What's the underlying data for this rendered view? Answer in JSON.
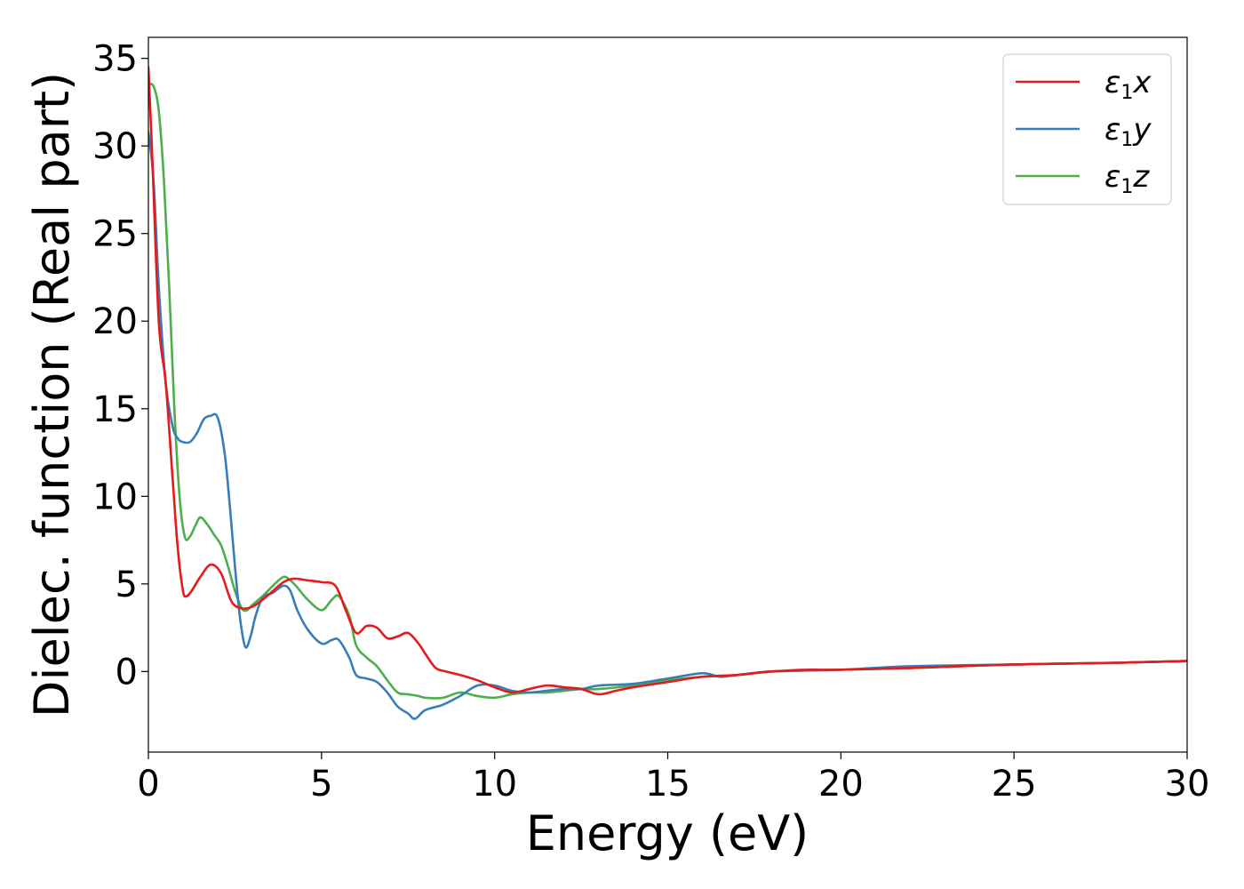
{
  "chart_data": {
    "type": "line",
    "xlabel": "Energy (eV)",
    "ylabel": "Dielec. function (Real part)",
    "xlim": [
      0,
      30
    ],
    "ylim": [
      -4.6,
      36.2
    ],
    "xticks": [
      0,
      5,
      10,
      15,
      20,
      25,
      30
    ],
    "yticks": [
      0,
      5,
      10,
      15,
      20,
      25,
      30,
      35
    ],
    "grid": false,
    "legend_position": "top-right",
    "series": [
      {
        "name": "ε1x",
        "legend": {
          "symbol": "ε",
          "sub": "1",
          "suffix": "x"
        },
        "color": "#e41a1c",
        "x": [
          0.0,
          0.1,
          0.3,
          0.5,
          0.7,
          0.85,
          1.0,
          1.1,
          1.25,
          1.5,
          1.8,
          2.1,
          2.4,
          2.7,
          3.0,
          3.3,
          3.6,
          3.9,
          4.2,
          4.6,
          5.0,
          5.4,
          5.7,
          6.0,
          6.3,
          6.6,
          6.9,
          7.2,
          7.5,
          7.8,
          8.0,
          8.3,
          8.6,
          9.0,
          9.5,
          10.0,
          10.5,
          11.0,
          11.5,
          12.0,
          12.5,
          13.0,
          13.5,
          14.0,
          15.0,
          16.0,
          17.0,
          18.0,
          19.0,
          20.0,
          22.0,
          25.0,
          28.0,
          30.0
        ],
        "y": [
          34.5,
          30.0,
          20.0,
          16.5,
          11.0,
          7.0,
          4.6,
          4.3,
          4.6,
          5.4,
          6.1,
          5.6,
          4.0,
          3.6,
          3.7,
          4.1,
          4.6,
          5.1,
          5.3,
          5.2,
          5.1,
          4.9,
          3.5,
          2.2,
          2.6,
          2.5,
          1.9,
          2.0,
          2.2,
          1.6,
          1.0,
          0.2,
          0.0,
          -0.2,
          -0.5,
          -0.9,
          -1.2,
          -1.0,
          -0.8,
          -0.9,
          -1.0,
          -1.3,
          -1.1,
          -0.9,
          -0.6,
          -0.3,
          -0.2,
          0.0,
          0.1,
          0.1,
          0.2,
          0.4,
          0.5,
          0.6
        ]
      },
      {
        "name": "ε1y",
        "legend": {
          "symbol": "ε",
          "sub": "1",
          "suffix": "y"
        },
        "color": "#377eb8",
        "x": [
          0.0,
          0.15,
          0.3,
          0.5,
          0.7,
          0.85,
          1.0,
          1.2,
          1.4,
          1.6,
          1.8,
          2.0,
          2.2,
          2.35,
          2.5,
          2.65,
          2.8,
          2.95,
          3.1,
          3.3,
          3.6,
          3.9,
          4.1,
          4.3,
          4.6,
          5.0,
          5.3,
          5.5,
          5.8,
          6.0,
          6.3,
          6.6,
          6.9,
          7.2,
          7.5,
          7.7,
          8.0,
          8.5,
          9.0,
          9.5,
          10.0,
          10.5,
          11.0,
          11.5,
          12.0,
          12.5,
          13.0,
          14.0,
          15.0,
          16.0,
          16.5,
          17.0,
          18.0,
          20.0,
          22.0,
          25.0,
          28.0,
          30.0
        ],
        "y": [
          30.8,
          28.0,
          22.0,
          16.5,
          14.0,
          13.3,
          13.1,
          13.1,
          13.6,
          14.4,
          14.6,
          14.5,
          12.5,
          9.5,
          6.0,
          3.0,
          1.4,
          2.0,
          3.2,
          4.2,
          4.5,
          4.9,
          4.6,
          3.5,
          2.4,
          1.6,
          1.8,
          1.8,
          0.8,
          -0.2,
          -0.4,
          -0.6,
          -1.2,
          -2.0,
          -2.4,
          -2.7,
          -2.2,
          -1.9,
          -1.4,
          -0.8,
          -0.8,
          -1.1,
          -1.2,
          -1.1,
          -1.0,
          -1.0,
          -0.8,
          -0.7,
          -0.4,
          -0.1,
          -0.3,
          -0.2,
          0.0,
          0.1,
          0.3,
          0.4,
          0.5,
          0.6
        ]
      },
      {
        "name": "ε1z",
        "legend": {
          "symbol": "ε",
          "sub": "1",
          "suffix": "z"
        },
        "color": "#4daf4a",
        "x": [
          0.0,
          0.15,
          0.3,
          0.45,
          0.6,
          0.75,
          0.9,
          1.05,
          1.2,
          1.35,
          1.5,
          1.7,
          1.9,
          2.1,
          2.3,
          2.5,
          2.7,
          2.85,
          3.0,
          3.3,
          3.6,
          3.9,
          4.1,
          4.3,
          4.6,
          5.0,
          5.3,
          5.5,
          5.8,
          6.0,
          6.3,
          6.6,
          6.9,
          7.2,
          7.5,
          7.8,
          8.0,
          8.5,
          9.0,
          9.5,
          10.0,
          10.5,
          11.0,
          11.5,
          12.0,
          12.5,
          13.0,
          14.0,
          15.0,
          16.0,
          17.0,
          18.0,
          20.0,
          22.0,
          25.0,
          28.0,
          30.0
        ],
        "y": [
          33.5,
          33.4,
          32.0,
          28.0,
          22.0,
          15.0,
          10.0,
          7.7,
          7.7,
          8.3,
          8.8,
          8.4,
          7.8,
          7.2,
          6.0,
          4.6,
          3.6,
          3.5,
          3.8,
          4.3,
          4.9,
          5.4,
          5.2,
          4.8,
          4.1,
          3.5,
          4.1,
          4.3,
          3.2,
          1.5,
          0.8,
          0.3,
          -0.5,
          -1.2,
          -1.3,
          -1.4,
          -1.5,
          -1.5,
          -1.2,
          -1.4,
          -1.5,
          -1.3,
          -1.2,
          -1.2,
          -1.1,
          -1.0,
          -1.0,
          -0.8,
          -0.5,
          -0.3,
          -0.2,
          0.0,
          0.1,
          0.2,
          0.4,
          0.5,
          0.6
        ]
      }
    ]
  }
}
